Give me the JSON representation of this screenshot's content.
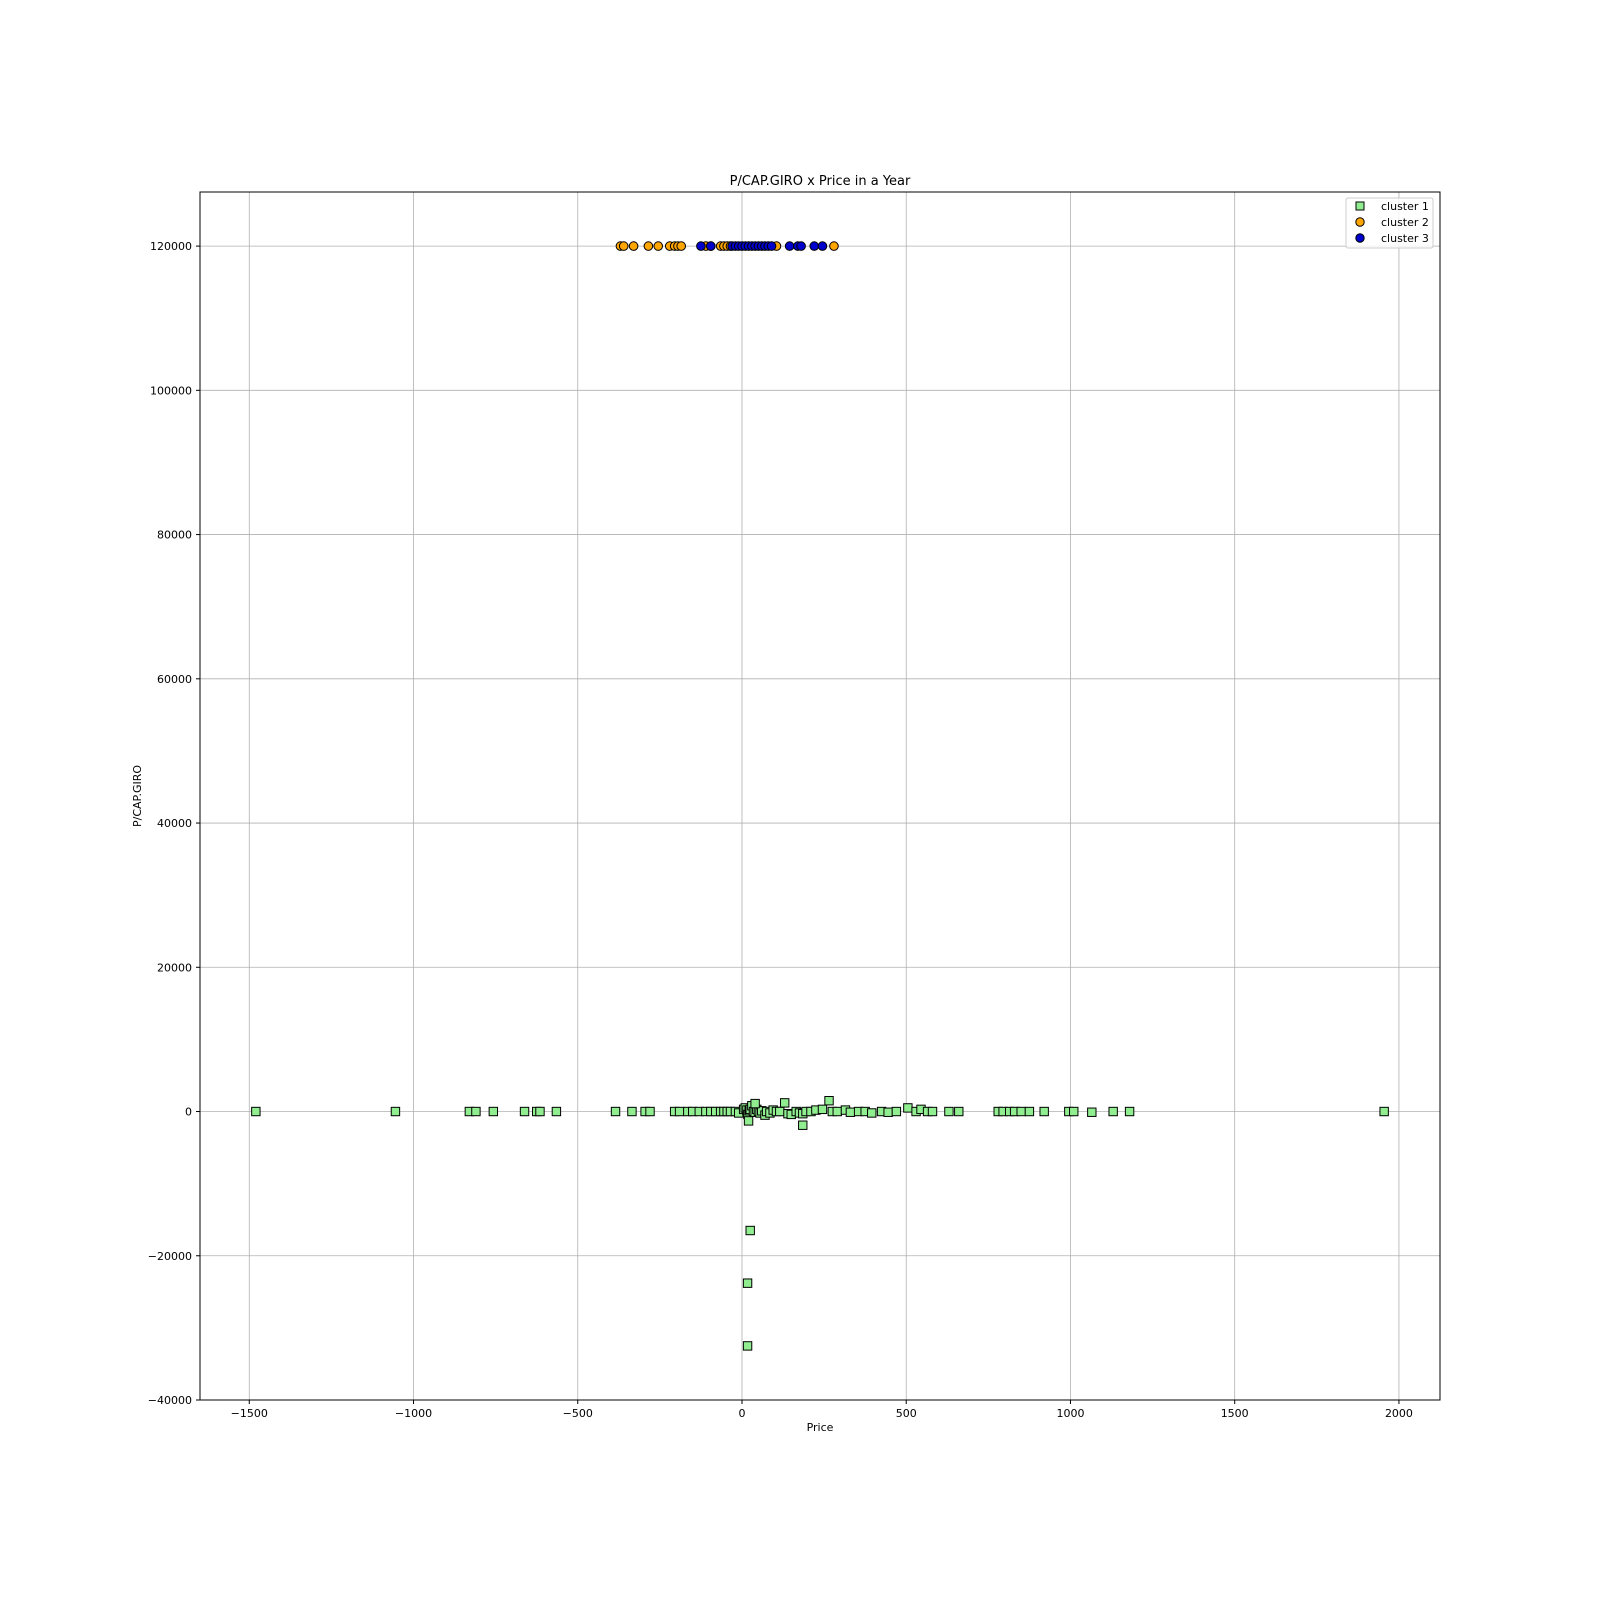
{
  "chart_data": {
    "type": "scatter",
    "title": "P/CAP.GIRO x Price in a Year",
    "xlabel": "Price",
    "ylabel": "P/CAP.GIRO",
    "xlim": [
      -1650,
      2125
    ],
    "ylim": [
      -40000,
      127500
    ],
    "xticks": [
      -1500,
      -1000,
      -500,
      0,
      500,
      1000,
      1500,
      2000
    ],
    "yticks": [
      -40000,
      -20000,
      0,
      20000,
      40000,
      60000,
      80000,
      100000,
      120000
    ],
    "xtick_labels": [
      "−1500",
      "−1000",
      "−500",
      "0",
      "500",
      "1000",
      "1500",
      "2000"
    ],
    "ytick_labels": [
      "−40000",
      "−20000",
      "0",
      "20000",
      "40000",
      "60000",
      "80000",
      "100000",
      "120000"
    ],
    "grid": true,
    "legend_position": "top-right",
    "series": [
      {
        "name": "cluster 1",
        "marker": "square",
        "color": "#90ee90",
        "edgecolor": "#000000",
        "x": [
          -1480,
          -1055,
          -830,
          -810,
          -757,
          -662,
          -625,
          -615,
          -565,
          -385,
          -335,
          -295,
          -280,
          -205,
          -190,
          -165,
          -150,
          -130,
          -110,
          -95,
          -80,
          -65,
          -55,
          -45,
          -35,
          -20,
          -10,
          5,
          10,
          15,
          18,
          22,
          25,
          30,
          35,
          40,
          45,
          50,
          55,
          60,
          70,
          75,
          85,
          95,
          105,
          115,
          130,
          140,
          150,
          165,
          175,
          185,
          195,
          210,
          225,
          245,
          265,
          275,
          290,
          315,
          330,
          355,
          375,
          395,
          425,
          445,
          470,
          505,
          530,
          545,
          565,
          580,
          630,
          660,
          780,
          795,
          815,
          830,
          850,
          875,
          920,
          995,
          1010,
          1065,
          1130,
          1180,
          1955,
          25,
          17,
          17,
          20,
          185,
          40
        ],
        "y": [
          0,
          0,
          0,
          0,
          0,
          0,
          0,
          0,
          0,
          0,
          0,
          0,
          0,
          0,
          0,
          0,
          0,
          0,
          0,
          0,
          0,
          0,
          0,
          0,
          0,
          0,
          -200,
          300,
          500,
          200,
          -400,
          100,
          300,
          800,
          0,
          -100,
          300,
          0,
          -200,
          100,
          -500,
          0,
          -200,
          200,
          0,
          0,
          1200,
          -300,
          -400,
          0,
          -200,
          -300,
          0,
          0,
          200,
          300,
          1500,
          0,
          0,
          200,
          -100,
          0,
          0,
          -200,
          0,
          -100,
          0,
          500,
          0,
          300,
          0,
          0,
          0,
          0,
          0,
          0,
          0,
          0,
          0,
          0,
          0,
          0,
          0,
          -100,
          0,
          0,
          0,
          -16500,
          -23800,
          -32500,
          -1300,
          -1900,
          1100
        ]
      },
      {
        "name": "cluster 2",
        "marker": "circle",
        "color": "#ffa500",
        "edgecolor": "#000000",
        "x": [
          -370,
          -360,
          -330,
          -285,
          -255,
          -220,
          -205,
          -195,
          -185,
          -110,
          -95,
          -65,
          -55,
          -45,
          -35,
          105,
          280
        ],
        "y": [
          120000,
          120000,
          120000,
          120000,
          120000,
          120000,
          120000,
          120000,
          120000,
          120000,
          120000,
          120000,
          120000,
          120000,
          120000,
          120000,
          120000
        ]
      },
      {
        "name": "cluster 3",
        "marker": "circle",
        "color": "#0000cd",
        "edgecolor": "#000000",
        "x": [
          -125,
          -95,
          -30,
          -20,
          -10,
          0,
          10,
          20,
          30,
          40,
          50,
          60,
          70,
          80,
          90,
          145,
          170,
          180,
          220,
          245
        ],
        "y": [
          120000,
          120000,
          120000,
          120000,
          120000,
          120000,
          120000,
          120000,
          120000,
          120000,
          120000,
          120000,
          120000,
          120000,
          120000,
          120000,
          120000,
          120000,
          120000,
          120000
        ]
      }
    ]
  }
}
